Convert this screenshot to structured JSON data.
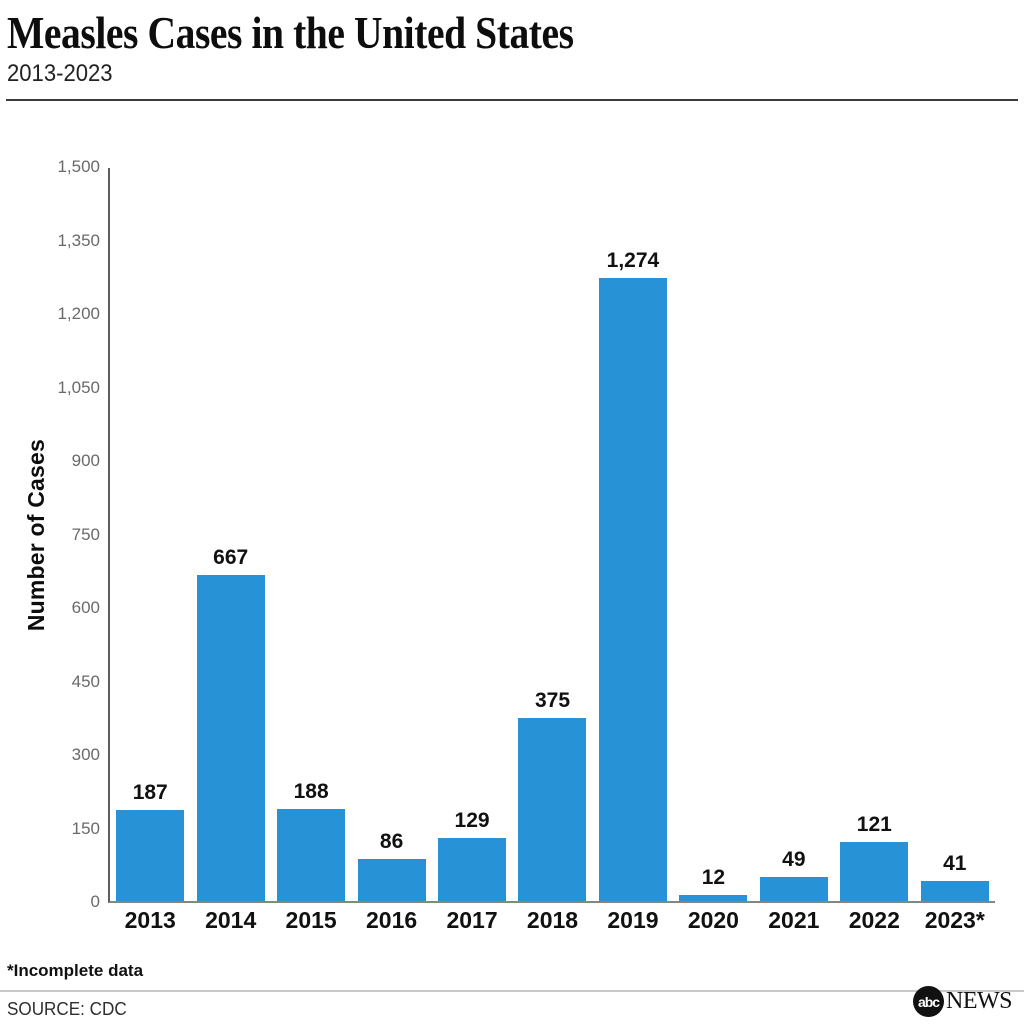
{
  "header": {
    "title": "Measles Cases in the United States",
    "subtitle": "2013-2023"
  },
  "chart_data": {
    "type": "bar",
    "title": "Measles Cases in the United States",
    "subtitle": "2013-2023",
    "categories": [
      "2013",
      "2014",
      "2015",
      "2016",
      "2017",
      "2018",
      "2019",
      "2020",
      "2021",
      "2022",
      "2023*"
    ],
    "values": [
      187,
      667,
      188,
      86,
      129,
      375,
      1274,
      12,
      49,
      121,
      41
    ],
    "value_labels": [
      "187",
      "667",
      "188",
      "86",
      "129",
      "375",
      "1,274",
      "12",
      "49",
      "121",
      "41"
    ],
    "xlabel": "",
    "ylabel": "Number of Cases",
    "ylim": [
      0,
      1500
    ],
    "yticks": [
      0,
      150,
      300,
      450,
      600,
      750,
      900,
      1050,
      1200,
      1350,
      1500
    ],
    "ytick_labels": [
      "0",
      "150",
      "300",
      "450",
      "600",
      "750",
      "900",
      "1,050",
      "1,200",
      "1,350",
      "1,500"
    ],
    "grid": false,
    "legend": "none",
    "bar_color": "#2793d6"
  },
  "footer": {
    "note": "*Incomplete data",
    "source": "SOURCE: CDC",
    "logo": {
      "abc": "abc",
      "news": "NEWS"
    }
  }
}
